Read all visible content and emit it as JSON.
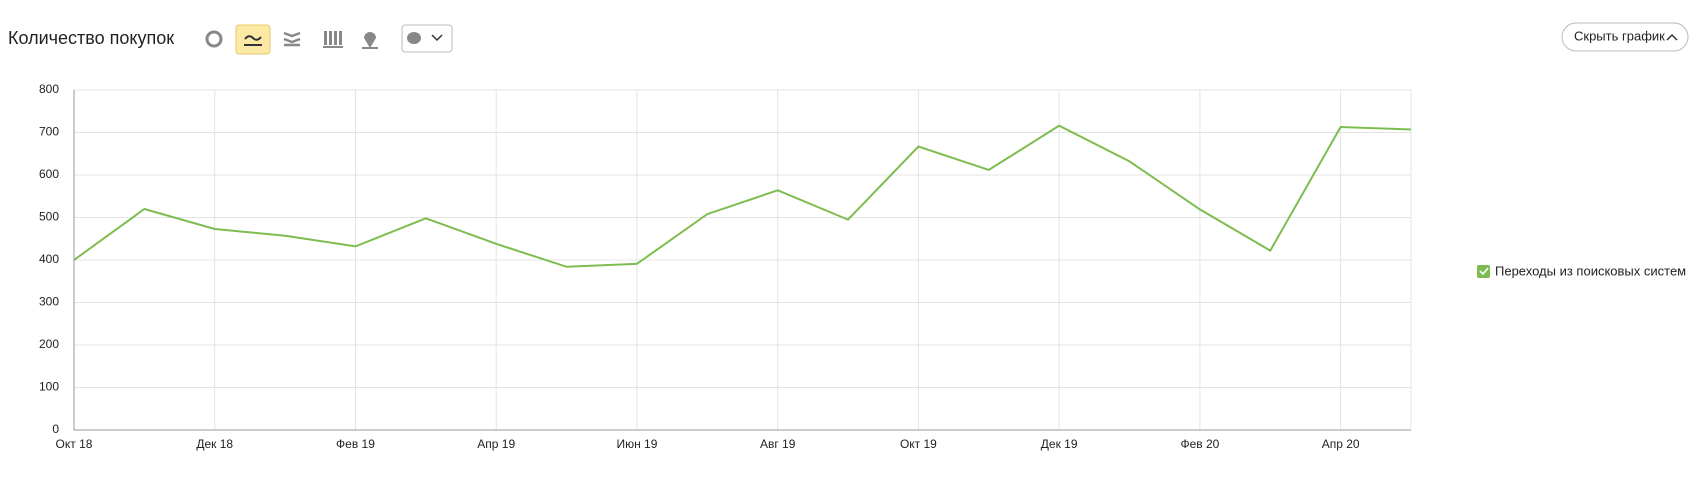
{
  "chart_data": {
    "type": "line",
    "title": "Количество покупок",
    "categories": [
      "Окт 18",
      null,
      "Дек 18",
      null,
      "Фев 19",
      null,
      "Апр 19",
      null,
      "Июн 19",
      null,
      "Авг 19",
      null,
      "Окт 19",
      null,
      "Дек 19",
      null,
      "Фев 20",
      null,
      "Апр 20",
      null
    ],
    "series": [
      {
        "name": "Переходы из поисковых систем",
        "color": "#7dbd4f",
        "values": [
          400,
          520,
          473,
          457,
          432,
          498,
          438,
          384,
          391,
          508,
          564,
          495,
          667,
          612,
          716,
          632,
          519,
          422,
          713,
          707
        ]
      }
    ],
    "ylim": [
      0,
      800
    ],
    "yticks": [
      0,
      100,
      200,
      300,
      400,
      500,
      600,
      700,
      800
    ],
    "grid": true,
    "legend": "right"
  },
  "toolbar": {
    "hide_button": "Скрыть график"
  }
}
